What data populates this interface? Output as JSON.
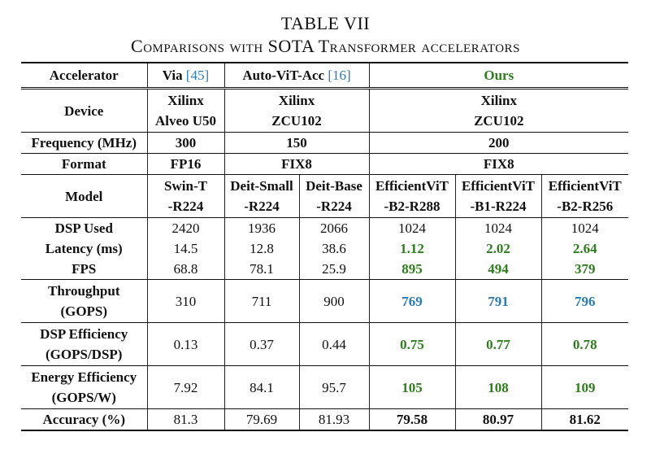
{
  "caption": {
    "label": "TABLE VII",
    "title": "Comparisons with SOTA Transformer accelerators"
  },
  "colors": {
    "ours_green": "#2e7d1e",
    "ours_blue": "#2a7ab5",
    "ref_link": "#2a7ab5"
  },
  "header": {
    "accelerator": "Accelerator",
    "via": "Via",
    "via_ref": "[45]",
    "autovit": "Auto-ViT-Acc",
    "autovit_ref": "[16]",
    "ours": "Ours"
  },
  "rows": {
    "device": {
      "label": "Device",
      "via": [
        "Xilinx",
        "Alveo U50"
      ],
      "autovit": [
        "Xilinx",
        "ZCU102"
      ],
      "ours": [
        "Xilinx",
        "ZCU102"
      ]
    },
    "frequency": {
      "label": "Frequency (MHz)",
      "via": "300",
      "autovit": "150",
      "ours": "200"
    },
    "format": {
      "label": "Format",
      "via": "FP16",
      "autovit": "FIX8",
      "ours": "FIX8"
    },
    "model": {
      "label": "Model",
      "cols": [
        [
          "Swin-T",
          "-R224"
        ],
        [
          "Deit-Small",
          "-R224"
        ],
        [
          "Deit-Base",
          "-R224"
        ],
        [
          "EfficientViT",
          "-B2-R288"
        ],
        [
          "EfficientViT",
          "-B1-R224"
        ],
        [
          "EfficientViT",
          "-B2-R256"
        ]
      ]
    },
    "dsp_used": {
      "label": "DSP Used",
      "values": [
        "2420",
        "1936",
        "2066",
        "1024",
        "1024",
        "1024"
      ]
    },
    "latency": {
      "label": "Latency (ms)",
      "values": [
        "14.5",
        "12.8",
        "38.6",
        "1.12",
        "2.02",
        "2.64"
      ]
    },
    "fps": {
      "label": "FPS",
      "values": [
        "68.8",
        "78.1",
        "25.9",
        "895",
        "494",
        "379"
      ]
    },
    "throughput": {
      "label": [
        "Throughput",
        "(GOPS)"
      ],
      "values": [
        "310",
        "711",
        "900",
        "769",
        "791",
        "796"
      ]
    },
    "dsp_eff": {
      "label": [
        "DSP Efficiency",
        "(GOPS/DSP)"
      ],
      "values": [
        "0.13",
        "0.37",
        "0.44",
        "0.75",
        "0.77",
        "0.78"
      ]
    },
    "energy_eff": {
      "label": [
        "Energy Efficiency",
        "(GOPS/W)"
      ],
      "values": [
        "7.92",
        "84.1",
        "95.7",
        "105",
        "108",
        "109"
      ]
    },
    "accuracy": {
      "label": "Accuracy (%)",
      "values": [
        "81.3",
        "79.69",
        "81.93",
        "79.58",
        "80.97",
        "81.62"
      ]
    }
  }
}
